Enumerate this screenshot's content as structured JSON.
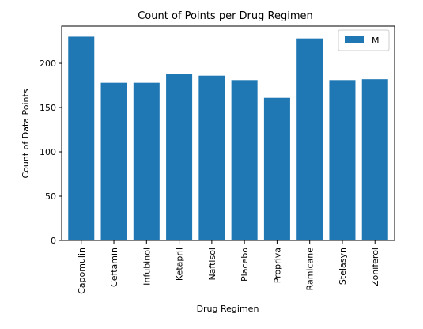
{
  "chart_data": {
    "type": "bar",
    "title": "Count of Points per Drug Regimen",
    "xlabel": "Drug Regimen",
    "ylabel": "Count of Data Points",
    "categories": [
      "Capomulin",
      "Ceftamin",
      "Infubinol",
      "Ketapril",
      "Naftisol",
      "Placebo",
      "Propriva",
      "Ramicane",
      "Stelasyn",
      "Zoniferol"
    ],
    "series": [
      {
        "name": "M",
        "values": [
          230,
          178,
          178,
          188,
          186,
          181,
          161,
          228,
          181,
          182
        ]
      }
    ],
    "ylim": [
      0,
      242
    ],
    "yticks": [
      0,
      50,
      100,
      150,
      200
    ],
    "grid": false,
    "legend": "top-right",
    "bar_color": "#1f77b4"
  }
}
